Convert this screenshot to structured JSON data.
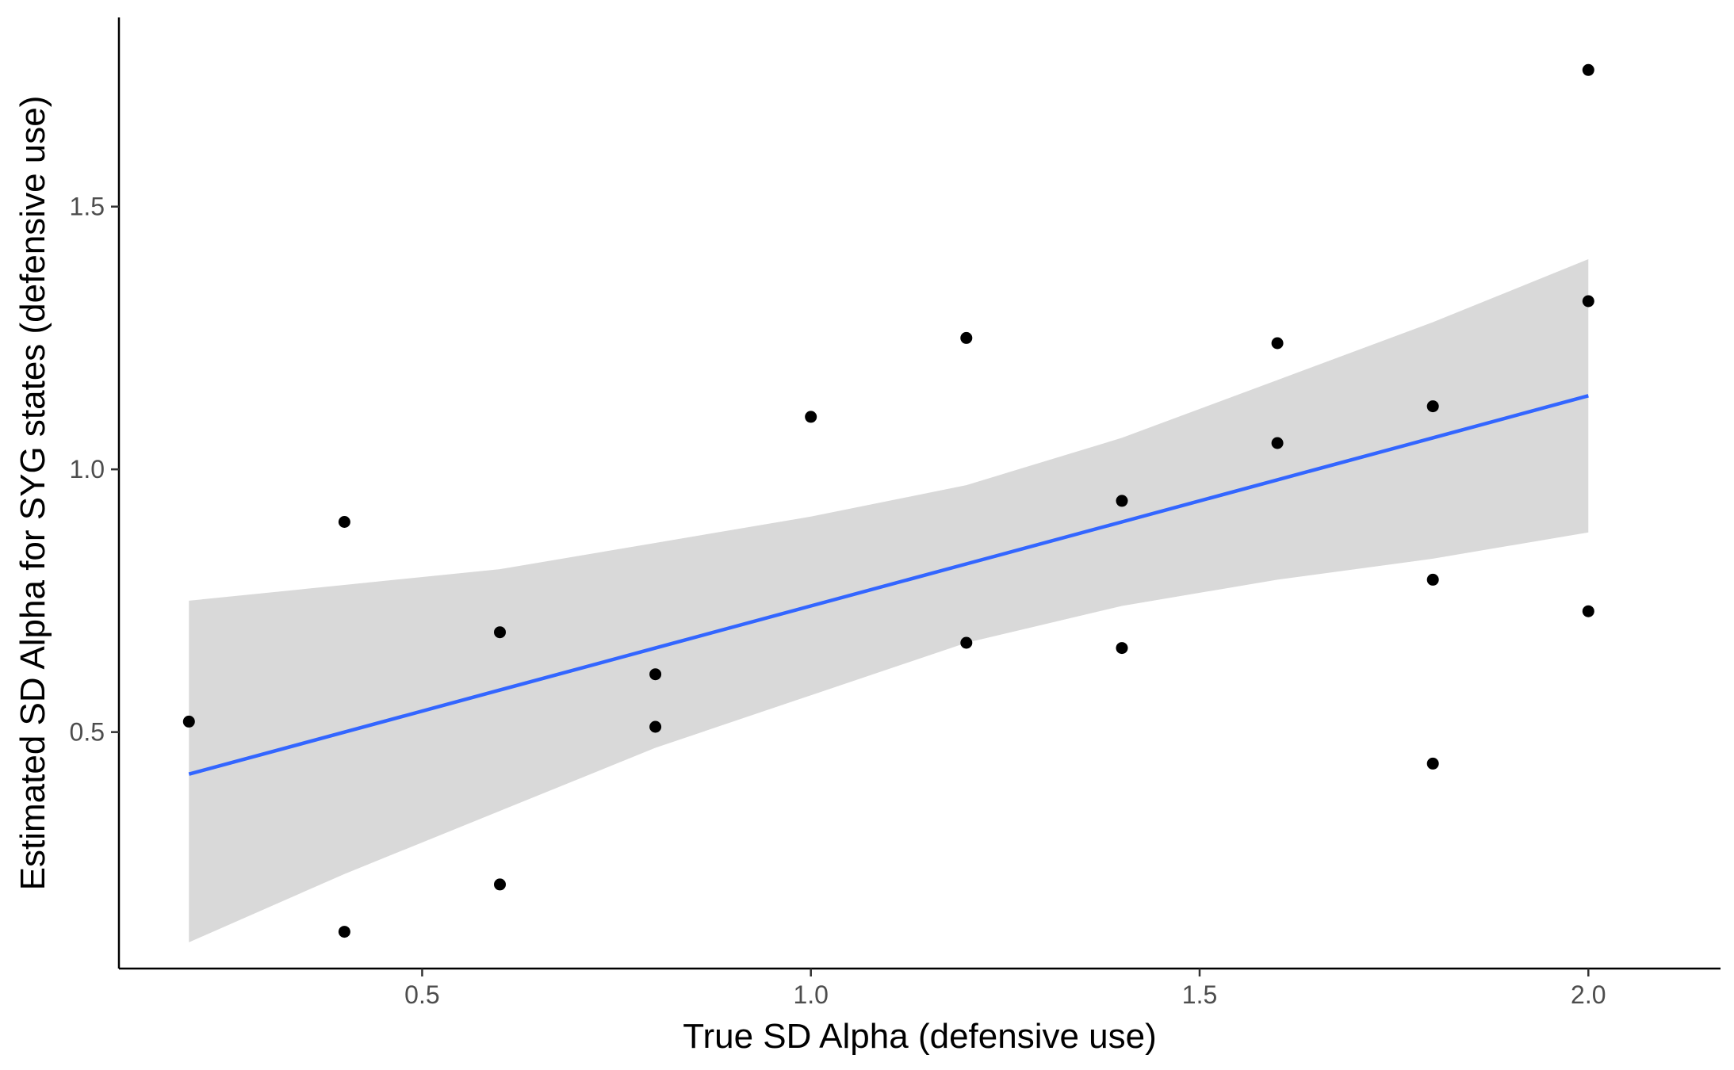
{
  "chart_data": {
    "type": "scatter",
    "title": "",
    "xlabel": "True SD Alpha (defensive use)",
    "ylabel": "Estimated SD Alpha for SYG states (defensive use)",
    "xlim": [
      0.11,
      2.17
    ],
    "ylim": [
      0.05,
      1.86
    ],
    "grid": false,
    "legend": "none",
    "x_ticks": [
      {
        "value": 0.5,
        "label": "0.5"
      },
      {
        "value": 1.0,
        "label": "1.0"
      },
      {
        "value": 1.5,
        "label": "1.5"
      },
      {
        "value": 2.0,
        "label": "2.0"
      }
    ],
    "y_ticks": [
      {
        "value": 0.5,
        "label": "0.5"
      },
      {
        "value": 1.0,
        "label": "1.0"
      },
      {
        "value": 1.5,
        "label": "1.5"
      }
    ],
    "points": [
      {
        "x": 0.2,
        "y": 0.52
      },
      {
        "x": 0.4,
        "y": 0.9
      },
      {
        "x": 0.4,
        "y": 0.12
      },
      {
        "x": 0.6,
        "y": 0.69
      },
      {
        "x": 0.6,
        "y": 0.21
      },
      {
        "x": 0.8,
        "y": 0.61
      },
      {
        "x": 0.8,
        "y": 0.51
      },
      {
        "x": 1.0,
        "y": 1.1
      },
      {
        "x": 1.2,
        "y": 1.25
      },
      {
        "x": 1.2,
        "y": 0.67
      },
      {
        "x": 1.4,
        "y": 0.94
      },
      {
        "x": 1.4,
        "y": 0.66
      },
      {
        "x": 1.6,
        "y": 1.24
      },
      {
        "x": 1.6,
        "y": 1.05
      },
      {
        "x": 1.8,
        "y": 1.12
      },
      {
        "x": 1.8,
        "y": 0.79
      },
      {
        "x": 1.8,
        "y": 0.44
      },
      {
        "x": 2.0,
        "y": 1.76
      },
      {
        "x": 2.0,
        "y": 1.32
      },
      {
        "x": 2.0,
        "y": 0.73
      }
    ],
    "fit": {
      "type": "lm",
      "x": [
        0.2,
        0.4,
        0.6,
        0.8,
        1.0,
        1.2,
        1.4,
        1.6,
        1.8,
        2.0
      ],
      "y": [
        0.42,
        0.5,
        0.58,
        0.66,
        0.74,
        0.82,
        0.9,
        0.98,
        1.06,
        1.14
      ],
      "ci_lower": [
        0.1,
        0.23,
        0.35,
        0.47,
        0.57,
        0.67,
        0.74,
        0.79,
        0.83,
        0.88
      ],
      "ci_upper": [
        0.75,
        0.78,
        0.81,
        0.86,
        0.91,
        0.97,
        1.06,
        1.17,
        1.28,
        1.4
      ],
      "line_color": "#3366ff",
      "ribbon_color": "#d9d9d9"
    },
    "point_color": "#000000"
  }
}
